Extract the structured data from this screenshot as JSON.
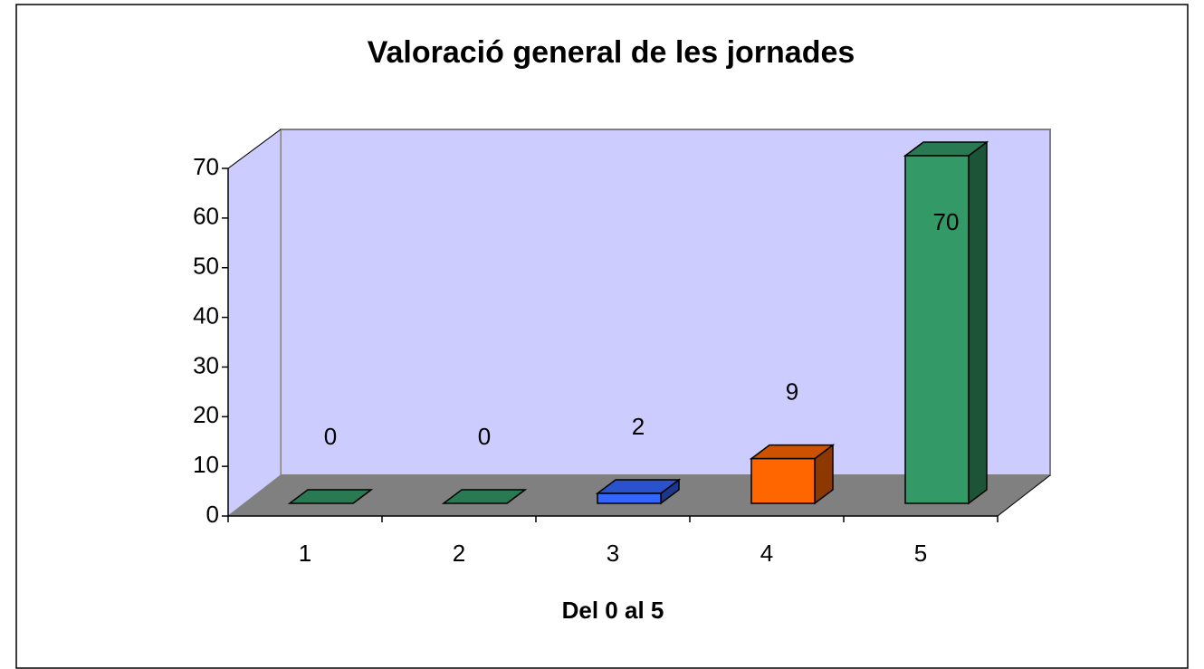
{
  "chart_data": {
    "type": "bar",
    "title": "Valoració general de les jornades",
    "x_label": "Del 0 al 5",
    "categories": [
      "1",
      "2",
      "3",
      "4",
      "5"
    ],
    "values": [
      0,
      0,
      2,
      9,
      70
    ],
    "colors": [
      "#339966",
      "#339966",
      "#3366FF",
      "#FF6600",
      "#339966"
    ],
    "ylim": [
      0,
      70
    ],
    "yticks": [
      0,
      10,
      20,
      30,
      40,
      50,
      60,
      70
    ],
    "grid": false
  }
}
